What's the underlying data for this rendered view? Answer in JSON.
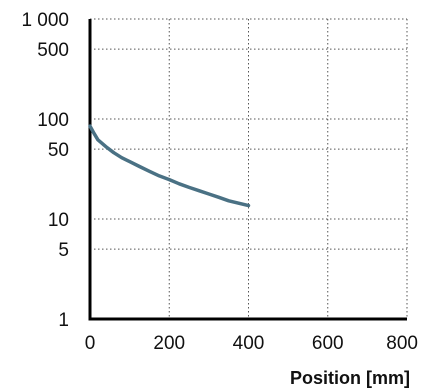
{
  "chart_data": {
    "type": "line",
    "title": "",
    "xlabel": "Position [mm]",
    "ylabel": "",
    "xscale": "linear",
    "yscale": "log",
    "xlim": [
      0,
      800
    ],
    "ylim": [
      1,
      1000
    ],
    "grid": true,
    "legend": "none",
    "x_ticks": [
      0,
      200,
      400,
      600,
      800
    ],
    "x_tick_labels": [
      "0",
      "200",
      "400",
      "600",
      "800"
    ],
    "y_ticks": [
      1,
      5,
      10,
      50,
      100,
      500,
      1000
    ],
    "y_tick_labels": [
      "1",
      "5",
      "10",
      "50",
      "100",
      "500",
      "1 000"
    ],
    "series": [
      {
        "color": "#4a7184",
        "x": [
          0,
          10,
          20,
          40,
          60,
          80,
          100,
          125,
          150,
          175,
          200,
          225,
          250,
          275,
          300,
          325,
          350,
          375,
          400
        ],
        "y": [
          85,
          72,
          62,
          53,
          46,
          41,
          37.5,
          33.5,
          30,
          27,
          24.8,
          22.5,
          20.7,
          19.2,
          17.8,
          16.5,
          15.2,
          14.4,
          13.6
        ]
      }
    ]
  }
}
